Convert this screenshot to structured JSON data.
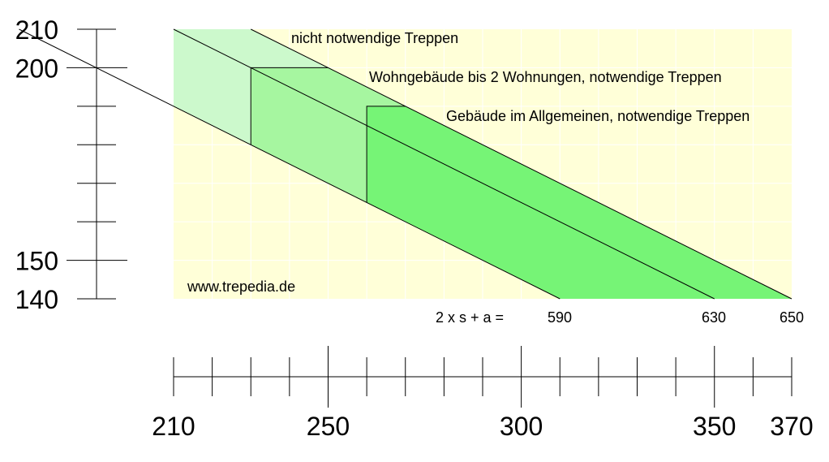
{
  "chart_data": {
    "type": "area",
    "x_axis": {
      "range": [
        210,
        370
      ],
      "tick_labels": [
        "210",
        "250",
        "300",
        "350",
        "370"
      ],
      "major_ticks": [
        250,
        300,
        350
      ],
      "minor_ticks": [
        210,
        220,
        230,
        240,
        260,
        270,
        280,
        290,
        310,
        320,
        330,
        340,
        360,
        370
      ]
    },
    "y_axis": {
      "range": [
        140,
        210
      ],
      "tick_labels": [
        "210",
        "200",
        "150",
        "140"
      ],
      "major_ticks": [
        200,
        150
      ],
      "minor_ticks": [
        210,
        190,
        180,
        170,
        160,
        140
      ]
    },
    "grid": true,
    "formula_label": "2 x s + a =",
    "sum_lines": [
      {
        "value": 590,
        "label": "590"
      },
      {
        "value": 630,
        "label": "630"
      },
      {
        "value": 650,
        "label": "650"
      }
    ],
    "regions": [
      {
        "label": "nicht notwendige Treppen",
        "x_min": 210,
        "y_max": 210,
        "color": "#ccf9cc"
      },
      {
        "label": "Wohngebäude bis 2 Wohnungen, notwendige Treppen",
        "x_min": 230,
        "y_max": 200,
        "color": "#a6f6a0"
      },
      {
        "label": "Gebäude im Allgemeinen, notwendige Treppen",
        "x_min": 260,
        "y_max": 190,
        "color": "#76f476"
      }
    ],
    "watermark": "www.trepedia.de",
    "colors": {
      "background": "#ffffd8",
      "grid": "#ffffff",
      "line": "#000000"
    }
  }
}
